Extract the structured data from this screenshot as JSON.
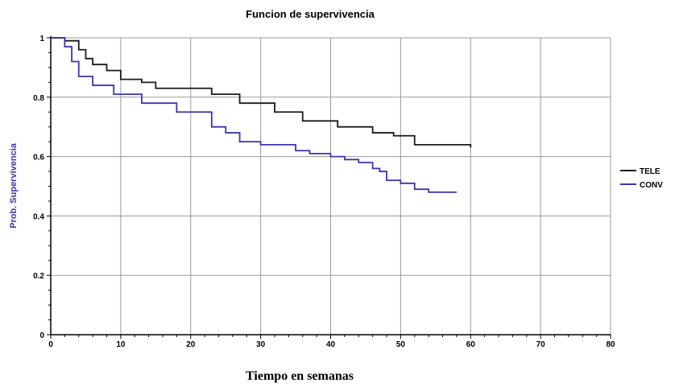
{
  "chart_data": {
    "type": "line",
    "title": "Funcion de supervivencia",
    "xlabel": "Tiempo en semanas",
    "ylabel": "Prob. Supervivencia",
    "xlim": [
      0,
      80
    ],
    "ylim": [
      0,
      1
    ],
    "x_ticks": [
      0,
      10,
      20,
      30,
      40,
      50,
      60,
      70,
      80
    ],
    "y_ticks": [
      0,
      0.2,
      0.4,
      0.6,
      0.8,
      1
    ],
    "x_tick_labels": [
      "0",
      "10",
      "20",
      "30",
      "40",
      "50",
      "60",
      "70",
      "80"
    ],
    "y_tick_labels": [
      "0",
      "0.2",
      "0.4",
      "0.6",
      "0.8",
      "1"
    ],
    "grid": true,
    "legend_position": "right",
    "step": true,
    "series": [
      {
        "name": "TELE",
        "color": "#1a1a1a",
        "x": [
          0,
          2,
          4,
          5,
          6,
          8,
          10,
          13,
          15,
          23,
          27,
          32,
          36,
          41,
          46,
          49,
          52,
          60
        ],
        "y": [
          1.0,
          0.99,
          0.96,
          0.93,
          0.91,
          0.89,
          0.86,
          0.85,
          0.83,
          0.81,
          0.78,
          0.75,
          0.72,
          0.7,
          0.68,
          0.67,
          0.64,
          0.63
        ]
      },
      {
        "name": "CONV",
        "color": "#3a35b0",
        "x": [
          0,
          2,
          3,
          4,
          6,
          9,
          13,
          18,
          23,
          25,
          27,
          30,
          35,
          37,
          40,
          42,
          44,
          46,
          47,
          48,
          50,
          52,
          54,
          58
        ],
        "y": [
          1.0,
          0.97,
          0.92,
          0.87,
          0.84,
          0.81,
          0.78,
          0.75,
          0.7,
          0.68,
          0.65,
          0.64,
          0.62,
          0.61,
          0.6,
          0.59,
          0.58,
          0.56,
          0.55,
          0.52,
          0.51,
          0.49,
          0.48,
          0.48
        ]
      }
    ]
  }
}
